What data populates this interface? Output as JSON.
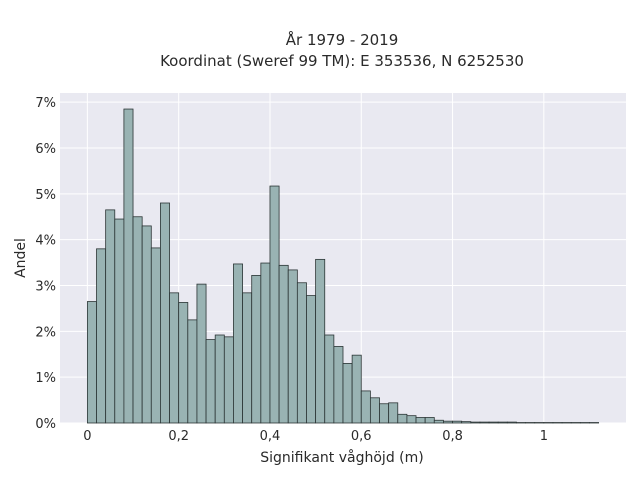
{
  "chart_data": {
    "type": "bar",
    "title": "År 1979 - 2019",
    "subtitle": "Koordinat (Sweref 99 TM): E 353536, N 6252530",
    "xlabel": "Signifikant våghöjd (m)",
    "ylabel": "Andel",
    "x_ticks": [
      {
        "value": 0,
        "label": "0"
      },
      {
        "value": 0.2,
        "label": "0,2"
      },
      {
        "value": 0.4,
        "label": "0,4"
      },
      {
        "value": 0.6,
        "label": "0,6"
      },
      {
        "value": 0.8,
        "label": "0,8"
      },
      {
        "value": 1.0,
        "label": "1"
      }
    ],
    "y_ticks": [
      {
        "value": 0,
        "label": "0%"
      },
      {
        "value": 1,
        "label": "1%"
      },
      {
        "value": 2,
        "label": "2%"
      },
      {
        "value": 3,
        "label": "3%"
      },
      {
        "value": 4,
        "label": "4%"
      },
      {
        "value": 5,
        "label": "5%"
      },
      {
        "value": 6,
        "label": "6%"
      },
      {
        "value": 7,
        "label": "7%"
      }
    ],
    "xlim": [
      -0.06,
      1.18
    ],
    "ylim": [
      0,
      7.2
    ],
    "bin_start": 0.0,
    "bin_width": 0.02,
    "values": [
      2.65,
      3.8,
      4.65,
      4.45,
      6.85,
      4.5,
      4.3,
      3.82,
      4.8,
      2.84,
      2.63,
      2.25,
      3.03,
      1.82,
      1.92,
      1.88,
      3.47,
      2.84,
      3.22,
      3.49,
      5.17,
      3.44,
      3.34,
      3.06,
      2.78,
      3.57,
      1.92,
      1.67,
      1.3,
      1.48,
      0.7,
      0.55,
      0.42,
      0.44,
      0.19,
      0.16,
      0.12,
      0.12,
      0.06,
      0.04,
      0.04,
      0.03,
      0.02,
      0.02,
      0.02,
      0.02,
      0.02,
      0.01,
      0.01,
      0.01,
      0.01,
      0.01,
      0.01,
      0.01,
      0.01,
      0.01
    ],
    "grid": true,
    "colors": {
      "background": "#e9e9f1",
      "bar_fill": "#99b3b3",
      "bar_edge": "#2b3535",
      "grid": "#ffffff"
    }
  }
}
